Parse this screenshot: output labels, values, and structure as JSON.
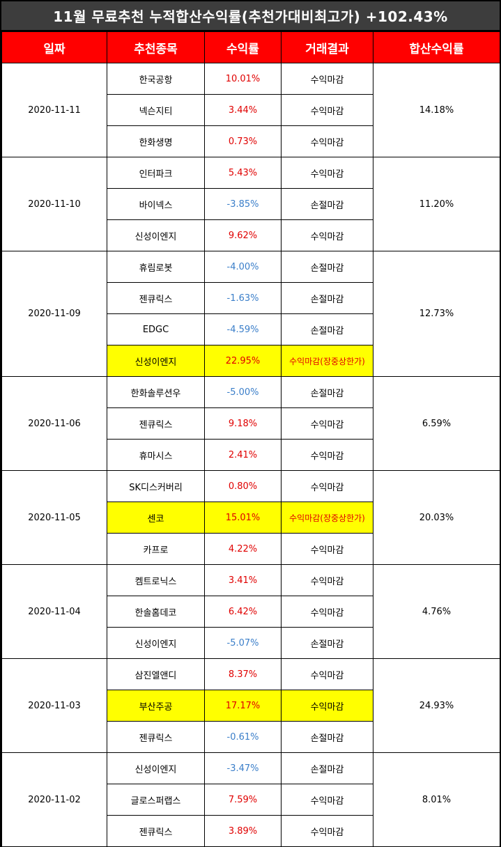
{
  "title": "11월 무료추천 누적합산수익률(추천가대비최고가) +102.43%",
  "headers": [
    "일짜",
    "추천종목",
    "수익률",
    "거래결과",
    "합산수익률"
  ],
  "groups": [
    {
      "date": "2020-11-11",
      "cumulative": "14.18%",
      "rows": [
        {
          "stock": "한국공항",
          "return": "10.01%",
          "result": "수익마감",
          "sign": "pos",
          "highlight": false
        },
        {
          "stock": "넥슨지티",
          "return": "3.44%",
          "result": "수익마감",
          "sign": "pos",
          "highlight": false
        },
        {
          "stock": "한화생명",
          "return": "0.73%",
          "result": "수익마감",
          "sign": "pos",
          "highlight": false
        }
      ]
    },
    {
      "date": "2020-11-10",
      "cumulative": "11.20%",
      "rows": [
        {
          "stock": "인터파크",
          "return": "5.43%",
          "result": "수익마감",
          "sign": "pos",
          "highlight": false
        },
        {
          "stock": "바이넥스",
          "return": "-3.85%",
          "result": "손절마감",
          "sign": "neg",
          "highlight": false
        },
        {
          "stock": "신성이엔지",
          "return": "9.62%",
          "result": "수익마감",
          "sign": "pos",
          "highlight": false
        }
      ]
    },
    {
      "date": "2020-11-09",
      "cumulative": "12.73%",
      "rows": [
        {
          "stock": "휴림로봇",
          "return": "-4.00%",
          "result": "손절마감",
          "sign": "neg",
          "highlight": false
        },
        {
          "stock": "젠큐릭스",
          "return": "-1.63%",
          "result": "손절마감",
          "sign": "neg",
          "highlight": false
        },
        {
          "stock": "EDGC",
          "return": "-4.59%",
          "result": "손절마감",
          "sign": "neg",
          "highlight": false
        },
        {
          "stock": "신성이엔지",
          "return": "22.95%",
          "result": "수익마감(장중상한가)",
          "sign": "pos",
          "highlight": true
        }
      ]
    },
    {
      "date": "2020-11-06",
      "cumulative": "6.59%",
      "rows": [
        {
          "stock": "한화솔루션우",
          "return": "-5.00%",
          "result": "손절마감",
          "sign": "neg",
          "highlight": false
        },
        {
          "stock": "젠큐릭스",
          "return": "9.18%",
          "result": "수익마감",
          "sign": "pos",
          "highlight": false
        },
        {
          "stock": "휴마시스",
          "return": "2.41%",
          "result": "수익마감",
          "sign": "pos",
          "highlight": false
        }
      ]
    },
    {
      "date": "2020-11-05",
      "cumulative": "20.03%",
      "rows": [
        {
          "stock": "SK디스커버리",
          "return": "0.80%",
          "result": "수익마감",
          "sign": "pos",
          "highlight": false
        },
        {
          "stock": "센코",
          "return": "15.01%",
          "result": "수익마감(장중상한가)",
          "sign": "pos",
          "highlight": true
        },
        {
          "stock": "카프로",
          "return": "4.22%",
          "result": "수익마감",
          "sign": "pos",
          "highlight": false
        }
      ]
    },
    {
      "date": "2020-11-04",
      "cumulative": "4.76%",
      "rows": [
        {
          "stock": "켐트로닉스",
          "return": "3.41%",
          "result": "수익마감",
          "sign": "pos",
          "highlight": false
        },
        {
          "stock": "한솔홈데코",
          "return": "6.42%",
          "result": "수익마감",
          "sign": "pos",
          "highlight": false
        },
        {
          "stock": "신성이엔지",
          "return": "-5.07%",
          "result": "손절마감",
          "sign": "neg",
          "highlight": false
        }
      ]
    },
    {
      "date": "2020-11-03",
      "cumulative": "24.93%",
      "rows": [
        {
          "stock": "삼진엘앤디",
          "return": "8.37%",
          "result": "수익마감",
          "sign": "pos",
          "highlight": false
        },
        {
          "stock": "부산주공",
          "return": "17.17%",
          "result": "수익마감",
          "sign": "pos",
          "highlight": true
        },
        {
          "stock": "젠큐릭스",
          "return": "-0.61%",
          "result": "손절마감",
          "sign": "neg",
          "highlight": false
        }
      ]
    },
    {
      "date": "2020-11-02",
      "cumulative": "8.01%",
      "rows": [
        {
          "stock": "신성이엔지",
          "return": "-3.47%",
          "result": "손절마감",
          "sign": "neg",
          "highlight": false
        },
        {
          "stock": "글로스퍼랩스",
          "return": "7.59%",
          "result": "수익마감",
          "sign": "pos",
          "highlight": false
        },
        {
          "stock": "젠큐릭스",
          "return": "3.89%",
          "result": "수익마감",
          "sign": "pos",
          "highlight": false
        }
      ]
    }
  ],
  "colors": {
    "header_bg": "#ff0000",
    "title_bg": "#3d3d3d",
    "highlight": "#ffff00",
    "positive": "#e00000",
    "negative": "#3a7ec9"
  }
}
